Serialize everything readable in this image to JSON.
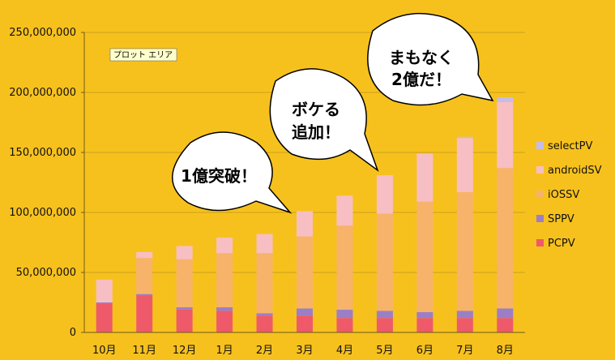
{
  "chart_data": {
    "type": "bar",
    "stacked": true,
    "categories": [
      "10月",
      "11月",
      "12月",
      "1月",
      "2月",
      "3月",
      "4月",
      "5月",
      "6月",
      "7月",
      "8月"
    ],
    "ylim": [
      0,
      250000000
    ],
    "yticks": [
      "0",
      "50,000,000",
      "100,000,000",
      "150,000,000",
      "200,000,000",
      "250,000,000"
    ],
    "grid": true,
    "legend_position": "right",
    "series": [
      {
        "name": "PCPV",
        "color": "#EE5A6A",
        "values": [
          24000000,
          31000000,
          19000000,
          18000000,
          14000000,
          14000000,
          12000000,
          12000000,
          12000000,
          12000000,
          12000000
        ]
      },
      {
        "name": "SPPV",
        "color": "#9B7FC6",
        "values": [
          1000000,
          1000000,
          2000000,
          3000000,
          2000000,
          6000000,
          7000000,
          6000000,
          5000000,
          6000000,
          8000000
        ]
      },
      {
        "name": "iOSSV",
        "color": "#F7B36A",
        "values": [
          0,
          30000000,
          40000000,
          45000000,
          50000000,
          60000000,
          70000000,
          81000000,
          92000000,
          99000000,
          117000000
        ]
      },
      {
        "name": "androidSV",
        "color": "#F7BFC3",
        "values": [
          19000000,
          5000000,
          11000000,
          13000000,
          16000000,
          21000000,
          25000000,
          32000000,
          40000000,
          45000000,
          55000000
        ]
      },
      {
        "name": "selectPV",
        "color": "#C7BCE6",
        "values": [
          0,
          0,
          0,
          0,
          0,
          0,
          0,
          0,
          0,
          1000000,
          4000000
        ]
      }
    ]
  },
  "annotations": {
    "tooltip": "プロット エリア",
    "bubble1": "1億突破！",
    "bubble2_line1": "ボケる",
    "bubble2_line2": "追加！",
    "bubble3_line1": "まもなく",
    "bubble3_line2": "2億だ！"
  }
}
